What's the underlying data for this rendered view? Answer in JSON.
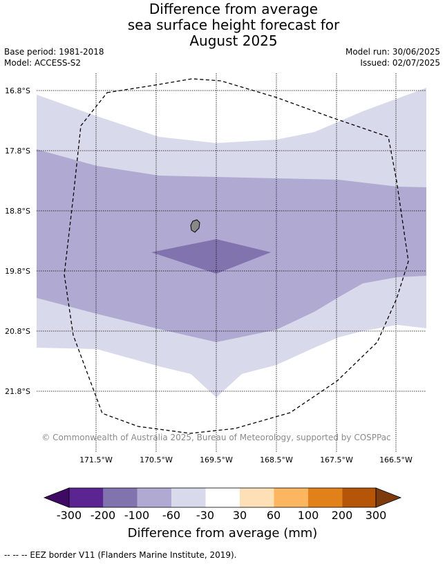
{
  "title": {
    "line1": "Difference from average",
    "line2": "sea surface height forecast for",
    "line3": "August 2025"
  },
  "meta": {
    "base_period": "Base period: 1981-2018",
    "model": "Model: ACCESS-S2",
    "model_run": "Model run: 30/06/2025",
    "issued": "Issued: 02/07/2025"
  },
  "map": {
    "lat_labels": [
      "16.8°S",
      "17.8°S",
      "18.8°S",
      "19.8°S",
      "20.8°S",
      "21.8°S"
    ],
    "lon_labels": [
      "171.5°W",
      "170.5°W",
      "169.5°W",
      "168.5°W",
      "167.5°W",
      "166.5°W"
    ],
    "copyright": "© Commonwealth of Australia 2025, Bureau of Meteorology, supported by COSPPac",
    "anomaly_colors": {
      "-30_to_-60": "#d8d9ea",
      "-60_to_-100": "#b0a9d1",
      "-100_to_-200": "#8173ae"
    },
    "land_color": "#888888",
    "border_style": "dashed"
  },
  "colorbar": {
    "ticks": [
      "-300",
      "-200",
      "-100",
      "-60",
      "-30",
      "30",
      "60",
      "100",
      "200",
      "300"
    ],
    "colors": [
      "#3f0a63",
      "#5a2590",
      "#8173ae",
      "#b0a9d1",
      "#d8d9ea",
      "#ffffff",
      "#fde0b5",
      "#fbb65f",
      "#e2801a",
      "#b45508",
      "#7c3a0d"
    ],
    "label": "Difference from average (mm)"
  },
  "footer": "--  --  -- EEZ border V11 (Flanders Marine Institute, 2019)."
}
